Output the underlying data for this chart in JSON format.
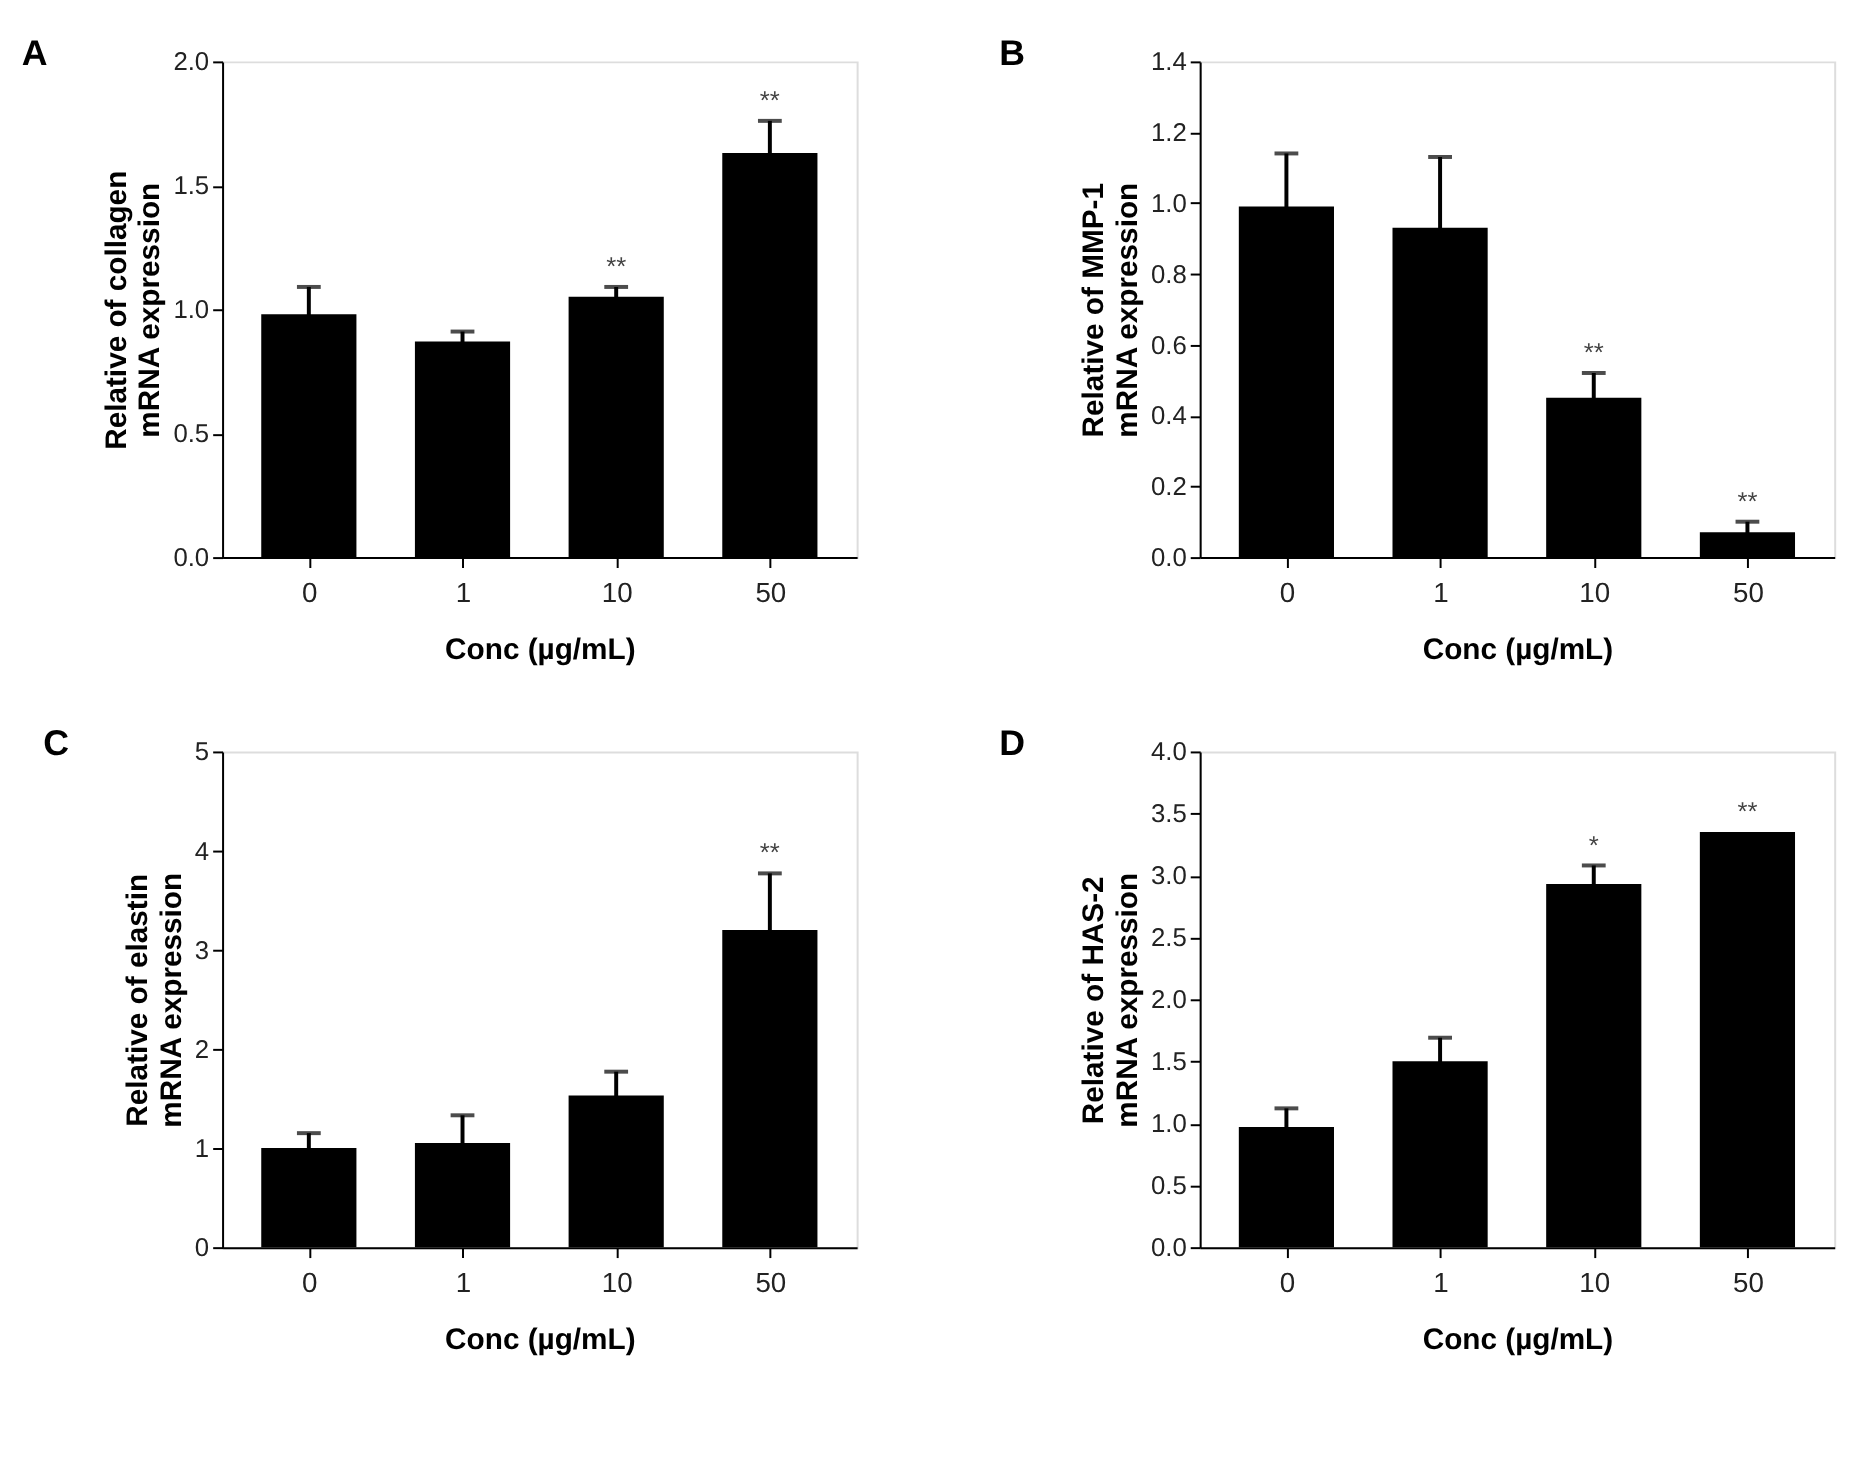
{
  "chart_data": [
    {
      "type": "bar",
      "title": "A",
      "xlabel": "Conc (µg/mL)",
      "ylabel": "Relative of collagen\nmRNA expression",
      "categories": [
        "0",
        "1",
        "10",
        "50"
      ],
      "values": [
        0.98,
        0.87,
        1.05,
        1.63
      ],
      "errors": [
        0.11,
        0.04,
        0.04,
        0.13
      ],
      "color": "#000000",
      "ylim": [
        0,
        2
      ],
      "yticks": [
        {
          "value": 0,
          "label": "0.0"
        },
        {
          "value": 0.5,
          "label": "0.5"
        },
        {
          "value": 1,
          "label": "1.0"
        },
        {
          "value": 1.5,
          "label": "1.5"
        },
        {
          "value": 2,
          "label": "2.0"
        }
      ],
      "grid": false,
      "annotations": [
        {
          "text": "**",
          "x": "10",
          "y": 1.09
        },
        {
          "text": "**",
          "x": "50",
          "y": 1.76
        }
      ]
    },
    {
      "type": "bar",
      "title": "B",
      "xlabel": "Conc (µg/mL)",
      "ylabel": "Relative of MMP-1\nmRNA expression",
      "categories": [
        "0",
        "1",
        "10",
        "50"
      ],
      "values": [
        0.99,
        0.93,
        0.45,
        0.07
      ],
      "errors": [
        0.15,
        0.2,
        0.07,
        0.03
      ],
      "color": "#000000",
      "ylim": [
        0,
        1.4
      ],
      "yticks": [
        {
          "value": 0,
          "label": "0.0"
        },
        {
          "value": 0.2,
          "label": "0.2"
        },
        {
          "value": 0.4,
          "label": "0.4"
        },
        {
          "value": 0.6,
          "label": "0.6"
        },
        {
          "value": 0.8,
          "label": "0.8"
        },
        {
          "value": 1,
          "label": "1.0"
        },
        {
          "value": 1.2,
          "label": "1.2"
        },
        {
          "value": 1.4,
          "label": "1.4"
        }
      ],
      "grid": false,
      "annotations": [
        {
          "text": "**",
          "x": "10",
          "y": 0.52
        },
        {
          "text": "**",
          "x": "50",
          "y": 0.1
        }
      ]
    },
    {
      "type": "bar",
      "title": "C",
      "xlabel": "Conc (µg/mL)",
      "ylabel": "Relative of elastin\nmRNA expression",
      "categories": [
        "0",
        "1",
        "10",
        "50"
      ],
      "values": [
        1.0,
        1.05,
        1.53,
        3.2
      ],
      "errors": [
        0.15,
        0.28,
        0.24,
        0.57
      ],
      "color": "#000000",
      "ylim": [
        0,
        5
      ],
      "yticks": [
        0,
        1,
        2,
        3,
        4,
        5
      ],
      "grid": false,
      "annotations": [
        {
          "text": "**",
          "x": "50",
          "y": 3.77
        }
      ]
    },
    {
      "type": "bar",
      "title": "D",
      "xlabel": "Conc (µg/mL)",
      "ylabel": "Relative of HAS-2\nmRNA expression",
      "categories": [
        "0",
        "1",
        "10",
        "50"
      ],
      "values": [
        0.97,
        1.5,
        2.93,
        3.35
      ],
      "errors": [
        0.15,
        0.19,
        0.15,
        null
      ],
      "color": "#000000",
      "ylim": [
        0,
        4
      ],
      "yticks": [
        {
          "value": 0,
          "label": "0.0"
        },
        {
          "value": 0.5,
          "label": "0.5"
        },
        {
          "value": 1,
          "label": "1.0"
        },
        {
          "value": 1.5,
          "label": "1.5"
        },
        {
          "value": 2,
          "label": "2.0"
        },
        {
          "value": 2.5,
          "label": "2.5"
        },
        {
          "value": 3,
          "label": "3.0"
        },
        {
          "value": 3.5,
          "label": "3.5"
        },
        {
          "value": 4,
          "label": "4.0"
        }
      ],
      "grid": false,
      "annotations": [
        {
          "text": "*",
          "x": "10",
          "y": 3.08
        },
        {
          "text": "**",
          "x": "50",
          "y": 3.35
        }
      ]
    }
  ]
}
